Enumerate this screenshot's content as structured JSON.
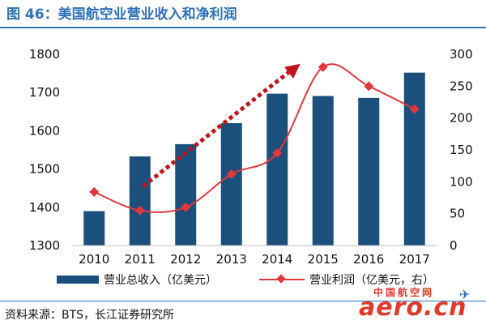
{
  "header": {
    "title": "图 46：美国航空业营业收入和净利润"
  },
  "footer": {
    "source": "资料来源：BTS，长江证券研究所"
  },
  "watermark": {
    "cn": "中国航空网",
    "en": "aero.cn"
  },
  "colors": {
    "bar": "#1b4f7c",
    "line": "#e0393c",
    "arrow": "#c0141e",
    "title": "#2e72b8"
  },
  "chart_data": {
    "type": "bar",
    "categories": [
      "2010",
      "2011",
      "2012",
      "2013",
      "2014",
      "2015",
      "2016",
      "2017"
    ],
    "series": [
      {
        "name": "营业总收入（亿美元）",
        "type": "bar",
        "axis": "left",
        "values": [
          1390,
          1533,
          1565,
          1620,
          1697,
          1691,
          1686,
          1752
        ]
      },
      {
        "name": "营业利润（亿美元，右）",
        "type": "line",
        "axis": "right",
        "values": [
          84,
          55,
          60,
          112,
          145,
          280,
          250,
          214
        ]
      }
    ],
    "yleft": {
      "lim": [
        1300,
        1800
      ],
      "ticks": [
        1300,
        1400,
        1500,
        1600,
        1700,
        1800
      ]
    },
    "yright": {
      "lim": [
        0,
        300
      ],
      "ticks": [
        0,
        50,
        100,
        150,
        200,
        250,
        300
      ]
    },
    "grid": false,
    "legend_position": "bottom",
    "annotation": {
      "type": "dotted-arrow",
      "from": {
        "x": "2011",
        "y": 1455
      },
      "to": {
        "x": "2015",
        "y": 1775
      }
    }
  }
}
